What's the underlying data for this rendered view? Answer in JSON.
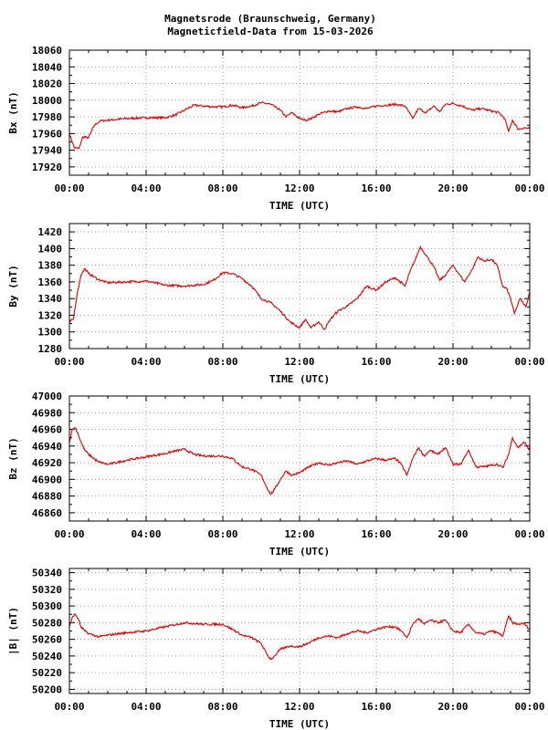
{
  "header": {
    "title": "Magnetsrode (Braunschweig, Germany)",
    "subtitle": "Magneticfield-Data from 15-03-2026"
  },
  "colors": {
    "trace": "#dd0000",
    "grid": "#9a9a9a",
    "frame": "#000000"
  },
  "chart_data": [
    {
      "type": "line",
      "name": "bx",
      "ylabel": "Bx (nT)",
      "xlabel": "TIME (UTC)",
      "xlim": [
        0,
        24
      ],
      "ylim": [
        17910,
        18060
      ],
      "yticks": [
        17920,
        17940,
        17960,
        17980,
        18000,
        18020,
        18040,
        18060
      ],
      "xticks": [
        "00:00",
        "04:00",
        "08:00",
        "12:00",
        "16:00",
        "20:00",
        "00:00"
      ],
      "grid": true,
      "x": [
        0.0,
        0.25,
        0.5,
        0.7,
        1.0,
        1.3,
        1.6,
        2.0,
        3.0,
        4.0,
        5.0,
        5.5,
        6.0,
        6.5,
        7.0,
        7.5,
        8.0,
        8.5,
        9.0,
        9.5,
        10.0,
        10.5,
        11.0,
        11.3,
        11.6,
        12.0,
        12.3,
        12.6,
        13.0,
        13.5,
        14.0,
        14.5,
        15.0,
        15.5,
        16.0,
        16.5,
        17.0,
        17.5,
        17.9,
        18.2,
        18.6,
        19.0,
        19.3,
        19.6,
        20.0,
        20.5,
        21.0,
        21.5,
        22.0,
        22.4,
        22.7,
        22.9,
        23.1,
        23.4,
        23.7,
        24.0
      ],
      "values": [
        17960,
        17943,
        17942,
        17956,
        17955,
        17970,
        17975,
        17976,
        17978,
        17979,
        17979,
        17982,
        17988,
        17994,
        17993,
        17992,
        17992,
        17994,
        17991,
        17993,
        17997,
        17995,
        17988,
        17980,
        17985,
        17978,
        17976,
        17978,
        17983,
        17987,
        17986,
        17990,
        17992,
        17990,
        17993,
        17994,
        17995,
        17993,
        17978,
        17990,
        17985,
        17993,
        17986,
        17995,
        17996,
        17993,
        17988,
        17990,
        17987,
        17985,
        17978,
        17962,
        17976,
        17965,
        17967,
        17966
      ]
    },
    {
      "type": "line",
      "name": "by",
      "ylabel": "By (nT)",
      "xlabel": "TIME (UTC)",
      "xlim": [
        0,
        24
      ],
      "ylim": [
        1280,
        1430
      ],
      "yticks": [
        1280,
        1300,
        1320,
        1340,
        1360,
        1380,
        1400,
        1420
      ],
      "xticks": [
        "00:00",
        "04:00",
        "08:00",
        "12:00",
        "16:00",
        "20:00",
        "00:00"
      ],
      "grid": true,
      "x": [
        0.0,
        0.2,
        0.4,
        0.6,
        0.8,
        1.0,
        1.5,
        2.0,
        3.0,
        4.0,
        5.0,
        6.0,
        7.0,
        7.5,
        8.0,
        8.5,
        9.0,
        9.5,
        10.0,
        10.5,
        11.0,
        11.5,
        12.0,
        12.3,
        12.6,
        13.0,
        13.3,
        13.6,
        14.0,
        14.5,
        15.0,
        15.5,
        16.0,
        16.5,
        17.0,
        17.5,
        17.8,
        18.0,
        18.3,
        18.6,
        19.0,
        19.3,
        19.6,
        20.0,
        20.3,
        20.6,
        21.0,
        21.3,
        21.6,
        22.0,
        22.3,
        22.6,
        22.8,
        23.0,
        23.2,
        23.5,
        23.8,
        24.0
      ],
      "values": [
        1312,
        1315,
        1345,
        1368,
        1376,
        1370,
        1363,
        1359,
        1360,
        1361,
        1356,
        1355,
        1357,
        1362,
        1371,
        1370,
        1364,
        1355,
        1340,
        1335,
        1325,
        1312,
        1305,
        1315,
        1305,
        1312,
        1303,
        1315,
        1325,
        1331,
        1340,
        1355,
        1350,
        1360,
        1365,
        1355,
        1375,
        1385,
        1402,
        1392,
        1378,
        1362,
        1368,
        1380,
        1370,
        1360,
        1375,
        1390,
        1385,
        1387,
        1380,
        1354,
        1352,
        1340,
        1322,
        1340,
        1330,
        1348
      ]
    },
    {
      "type": "line",
      "name": "bz",
      "ylabel": "Bz (nT)",
      "xlabel": "TIME (UTC)",
      "xlim": [
        0,
        24
      ],
      "ylim": [
        46850,
        47000
      ],
      "yticks": [
        46860,
        46880,
        46900,
        46920,
        46940,
        46960,
        46980,
        47000
      ],
      "xticks": [
        "00:00",
        "04:00",
        "08:00",
        "12:00",
        "16:00",
        "20:00",
        "00:00"
      ],
      "grid": true,
      "x": [
        0.0,
        0.15,
        0.3,
        0.45,
        0.6,
        0.8,
        1.0,
        1.5,
        2.0,
        3.0,
        4.0,
        5.0,
        5.5,
        6.0,
        6.5,
        7.0,
        8.0,
        8.5,
        9.0,
        9.5,
        10.0,
        10.3,
        10.5,
        10.7,
        11.0,
        11.3,
        11.6,
        12.0,
        12.5,
        13.0,
        13.5,
        14.0,
        14.5,
        15.0,
        15.5,
        16.0,
        16.5,
        17.0,
        17.3,
        17.6,
        17.9,
        18.2,
        18.5,
        18.8,
        19.2,
        19.6,
        20.0,
        20.4,
        20.8,
        21.2,
        21.6,
        22.0,
        22.3,
        22.6,
        22.9,
        23.1,
        23.4,
        23.7,
        24.0
      ],
      "values": [
        46945,
        46960,
        46962,
        46955,
        46945,
        46935,
        46930,
        46921,
        46918,
        46923,
        46927,
        46931,
        46934,
        46936,
        46930,
        46928,
        46928,
        46925,
        46915,
        46912,
        46905,
        46890,
        46882,
        46888,
        46900,
        46910,
        46905,
        46908,
        46915,
        46920,
        46917,
        46920,
        46922,
        46918,
        46922,
        46925,
        46923,
        46925,
        46918,
        46905,
        46925,
        46938,
        46928,
        46935,
        46930,
        46938,
        46918,
        46918,
        46935,
        46915,
        46915,
        46917,
        46918,
        46914,
        46930,
        46950,
        46938,
        46945,
        46935
      ]
    },
    {
      "type": "line",
      "name": "b-total",
      "ylabel": "|B| (nT)",
      "xlabel": "TIME (UTC)",
      "xlim": [
        0,
        24
      ],
      "ylim": [
        50195,
        50345
      ],
      "yticks": [
        50200,
        50220,
        50240,
        50260,
        50280,
        50300,
        50320,
        50340
      ],
      "xticks": [
        "00:00",
        "04:00",
        "08:00",
        "12:00",
        "16:00",
        "20:00",
        "00:00"
      ],
      "grid": true,
      "x": [
        0.0,
        0.15,
        0.3,
        0.45,
        0.6,
        0.8,
        1.0,
        1.5,
        2.0,
        3.0,
        4.0,
        5.0,
        6.0,
        7.0,
        8.0,
        8.5,
        9.0,
        9.5,
        10.0,
        10.3,
        10.5,
        10.7,
        11.0,
        11.5,
        12.0,
        12.5,
        13.0,
        13.5,
        14.0,
        14.5,
        15.0,
        15.5,
        16.0,
        16.5,
        17.0,
        17.3,
        17.6,
        17.9,
        18.2,
        18.5,
        18.8,
        19.2,
        19.6,
        20.0,
        20.4,
        20.8,
        21.2,
        21.6,
        22.0,
        22.3,
        22.6,
        22.9,
        23.1,
        23.4,
        23.7,
        24.0
      ],
      "values": [
        50275,
        50287,
        50290,
        50285,
        50275,
        50270,
        50267,
        50263,
        50265,
        50268,
        50270,
        50275,
        50280,
        50278,
        50278,
        50272,
        50265,
        50262,
        50255,
        50242,
        50236,
        50240,
        50248,
        50252,
        50251,
        50256,
        50262,
        50264,
        50262,
        50267,
        50270,
        50268,
        50272,
        50275,
        50275,
        50270,
        50262,
        50278,
        50285,
        50278,
        50283,
        50280,
        50283,
        50270,
        50268,
        50278,
        50268,
        50266,
        50270,
        50268,
        50264,
        50288,
        50280,
        50278,
        50279,
        50272
      ]
    }
  ]
}
